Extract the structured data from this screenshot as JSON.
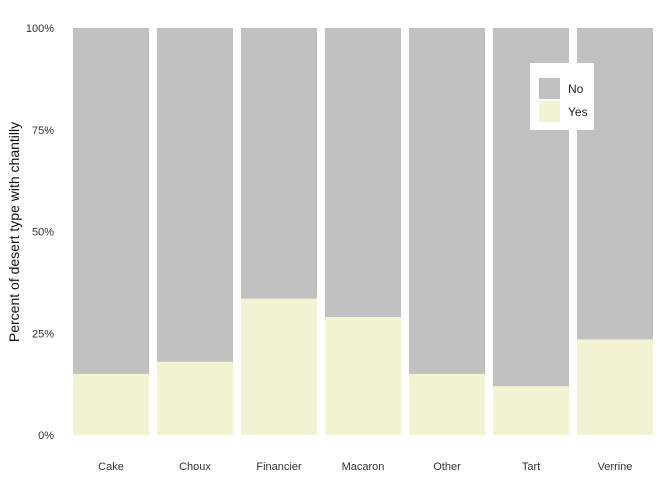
{
  "chart_data": {
    "type": "bar",
    "stacked": true,
    "categories": [
      "Cake",
      "Choux",
      "Financier",
      "Macaron",
      "Other",
      "Tart",
      "Verrine"
    ],
    "series": [
      {
        "name": "Yes",
        "values": [
          15,
          18,
          33.5,
          29,
          15,
          12,
          23.5
        ],
        "color": "#f3f2d3"
      },
      {
        "name": "No",
        "values": [
          85,
          82,
          66.5,
          71,
          85,
          88,
          76.5
        ],
        "color": "#c0c0c0"
      }
    ],
    "ylabel": "Percent of desert type with chantilly",
    "ylim": [
      0,
      100
    ],
    "yticks": [
      "0%",
      "25%",
      "50%",
      "75%",
      "100%"
    ],
    "ytick_values": [
      0,
      25,
      50,
      75,
      100
    ],
    "grid": false,
    "legend": {
      "placement": "top-right",
      "items": [
        "No",
        "Yes"
      ]
    }
  }
}
